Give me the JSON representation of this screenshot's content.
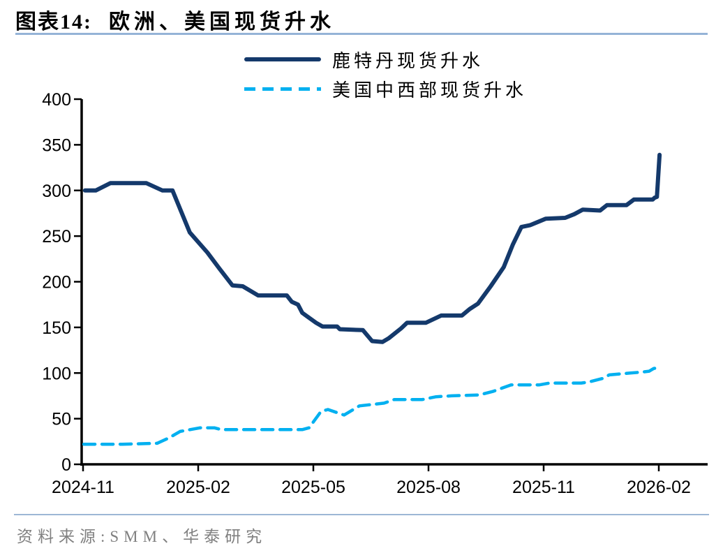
{
  "page": {
    "background": "#ffffff"
  },
  "header": {
    "title_prefix": "图表14:",
    "title_text": "欧洲、美国现货升水",
    "underline_color": "#95B3D7"
  },
  "footer": {
    "source_text": "资料来源:SMM、华泰研究",
    "divider_color": "#9DB7D5",
    "text_color": "#808080"
  },
  "chart_data": {
    "type": "line",
    "title": "欧洲、美国现货升水",
    "x_unit": "months after 2024-11",
    "x_axis": {
      "label": "",
      "tick_labels": [
        "2024-11",
        "2025-02",
        "2025-05",
        "2025-08",
        "2025-11",
        "2026-02"
      ],
      "tick_positions_months": [
        0,
        3,
        6,
        9,
        12,
        15
      ],
      "range_months": [
        0,
        15.3
      ]
    },
    "y_axis": {
      "label": "",
      "min": 0,
      "max": 400,
      "step": 50,
      "tick_labels": [
        "0",
        "50",
        "100",
        "150",
        "200",
        "250",
        "300",
        "350",
        "400"
      ]
    },
    "grid": false,
    "legend_position": "top-center",
    "axis_color": "#000000",
    "series": [
      {
        "name": "鹿特丹现货升水",
        "color": "#14396B",
        "line_style": "solid",
        "points": [
          [
            0.05,
            300
          ],
          [
            0.33,
            300
          ],
          [
            0.71,
            308
          ],
          [
            1.65,
            308
          ],
          [
            2.07,
            300
          ],
          [
            2.33,
            300
          ],
          [
            2.78,
            254
          ],
          [
            3.24,
            232
          ],
          [
            3.56,
            214
          ],
          [
            3.89,
            196
          ],
          [
            4.16,
            195
          ],
          [
            4.56,
            185
          ],
          [
            5.31,
            185
          ],
          [
            5.44,
            178
          ],
          [
            5.6,
            175
          ],
          [
            5.71,
            166
          ],
          [
            5.84,
            162
          ],
          [
            6.07,
            155
          ],
          [
            6.24,
            151
          ],
          [
            6.62,
            151
          ],
          [
            6.69,
            148
          ],
          [
            7.29,
            147
          ],
          [
            7.53,
            135
          ],
          [
            7.8,
            134
          ],
          [
            7.96,
            138
          ],
          [
            8.29,
            149
          ],
          [
            8.44,
            155
          ],
          [
            8.93,
            155
          ],
          [
            9.33,
            163
          ],
          [
            9.87,
            163
          ],
          [
            10.07,
            170
          ],
          [
            10.29,
            176
          ],
          [
            10.62,
            195
          ],
          [
            10.96,
            216
          ],
          [
            11.2,
            241
          ],
          [
            11.42,
            260
          ],
          [
            11.65,
            262
          ],
          [
            12.05,
            269
          ],
          [
            12.56,
            270
          ],
          [
            12.8,
            274
          ],
          [
            13.02,
            279
          ],
          [
            13.47,
            278
          ],
          [
            13.65,
            284
          ],
          [
            14.16,
            284
          ],
          [
            14.35,
            290
          ],
          [
            14.84,
            290
          ],
          [
            14.89,
            292
          ],
          [
            14.95,
            293
          ],
          [
            15.02,
            339
          ]
        ]
      },
      {
        "name": "美国中西部现货升水",
        "color": "#00B0F0",
        "line_style": "dashed",
        "points": [
          [
            0.02,
            22
          ],
          [
            1.02,
            22
          ],
          [
            1.93,
            23
          ],
          [
            2.24,
            29
          ],
          [
            2.53,
            36
          ],
          [
            3.05,
            40
          ],
          [
            3.42,
            40
          ],
          [
            3.6,
            38
          ],
          [
            5.71,
            38
          ],
          [
            5.89,
            40
          ],
          [
            6.2,
            58
          ],
          [
            6.38,
            60
          ],
          [
            6.8,
            54
          ],
          [
            7.2,
            64
          ],
          [
            7.84,
            67
          ],
          [
            8.11,
            71
          ],
          [
            8.84,
            71
          ],
          [
            9.2,
            74
          ],
          [
            9.6,
            75
          ],
          [
            10.33,
            76
          ],
          [
            10.69,
            80
          ],
          [
            11.15,
            87
          ],
          [
            11.89,
            87
          ],
          [
            12.15,
            89
          ],
          [
            12.98,
            89
          ],
          [
            13.16,
            90
          ],
          [
            13.53,
            94
          ],
          [
            13.71,
            98
          ],
          [
            14.25,
            100
          ],
          [
            14.56,
            101
          ],
          [
            14.75,
            102
          ],
          [
            14.87,
            105
          ],
          [
            15.02,
            106
          ]
        ]
      }
    ]
  }
}
